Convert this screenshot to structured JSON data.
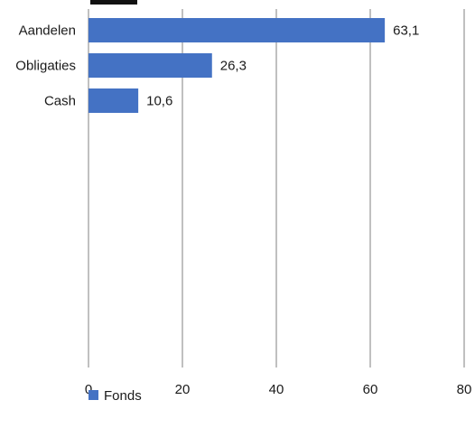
{
  "chart_data": {
    "type": "bar",
    "orientation": "horizontal",
    "categories": [
      "Aandelen",
      "Obligaties",
      "Cash"
    ],
    "series": [
      {
        "name": "Fonds",
        "values": [
          63.1,
          26.3,
          10.6
        ],
        "value_labels": [
          "63,1",
          "26,3",
          "10,6"
        ],
        "color": "#4472c4"
      }
    ],
    "xlim": [
      0,
      80
    ],
    "xticks": [
      0,
      20,
      40,
      60,
      80
    ],
    "xtick_labels": [
      "0",
      "20",
      "40",
      "60",
      "80"
    ],
    "grid": true,
    "legend_position": "bottom-left",
    "title": "",
    "xlabel": "",
    "ylabel": ""
  }
}
